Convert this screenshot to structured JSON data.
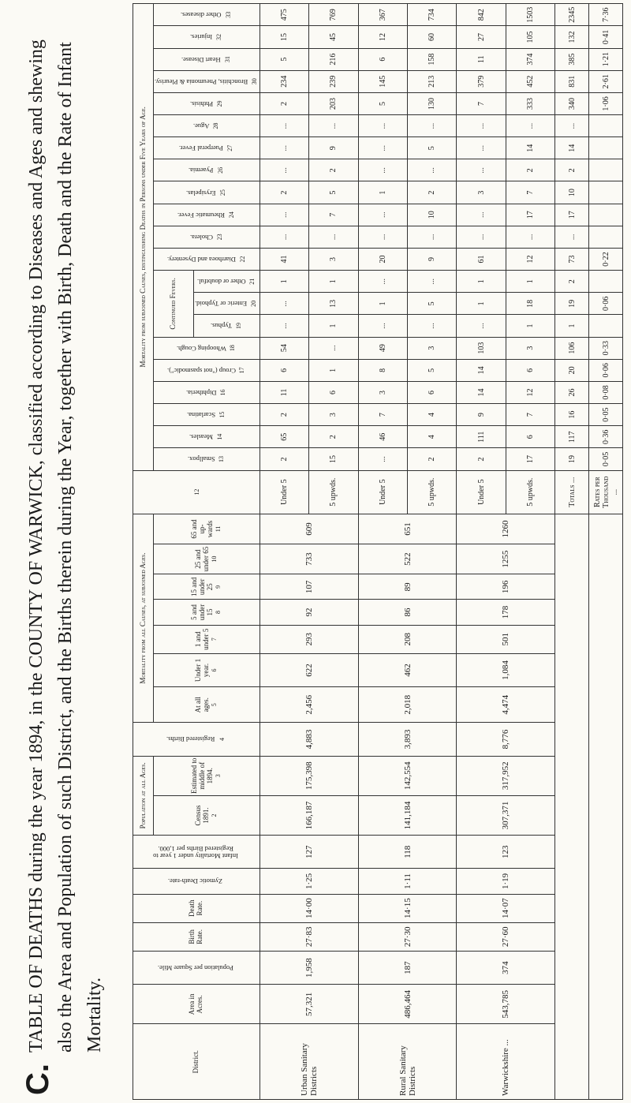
{
  "title": {
    "prefix": "C.",
    "text": "TABLE OF DEATHS during the year 1894, in the COUNTY OF WARWICK, classified according to Diseases and Ages and shewing also the Area and Population of such District, and the Births therein during the Year, together with Birth, Death and the Rate of Infant Mortality."
  },
  "header": {
    "district": {
      "label": "District."
    },
    "area": {
      "label": "Area in Acres."
    },
    "density": {
      "label": "Population per Square Mile."
    },
    "birth_rate": {
      "label": "Birth Rate."
    },
    "death_rate": {
      "label": "Death Rate."
    },
    "zymotic_rate": {
      "label": "Zymotic Death-rate."
    },
    "infant_mortality": {
      "label": "Infant Mortality under 1 year to Registered Births per 1,000."
    },
    "population": {
      "title": "Population at all Ages.",
      "columns": [
        {
          "label": "Census 1891.",
          "number": "2"
        },
        {
          "label": "Estimated to middle of 1894.",
          "number": "3"
        }
      ]
    },
    "births": {
      "label": "Registered Births.",
      "number": "4"
    },
    "ages": {
      "title": "Mortality from all Causes, at subjoined Ages.",
      "columns": [
        {
          "label": "At all ages.",
          "number": "5"
        },
        {
          "label": "Under 1 year.",
          "number": "6"
        },
        {
          "label": "1 and under 5",
          "number": "7"
        },
        {
          "label": "5 and under 15",
          "number": "8"
        },
        {
          "label": "15 and under 25",
          "number": "9"
        },
        {
          "label": "25 and under 65",
          "number": "10"
        },
        {
          "label": "65 and up-wards",
          "number": "11"
        }
      ]
    },
    "age_group": {
      "number": "12"
    },
    "causes": {
      "title": "Mortality from subjoined Causes, distinguishing Deaths in Persons under Five Years of Age.",
      "columns": [
        {
          "label": "Smallpox.",
          "number": "13"
        },
        {
          "label": "Measles.",
          "number": "14"
        },
        {
          "label": "Scarlatina.",
          "number": "15"
        },
        {
          "label": "Diphtheria.",
          "number": "16"
        },
        {
          "label": "Croup (\"not spasmodic\").",
          "number": "17"
        },
        {
          "label": "Whooping Cough.",
          "number": "18"
        },
        {
          "title": "Continued Fevers.",
          "columns": [
            {
              "label": "Typhus.",
              "number": "19"
            },
            {
              "label": "Enteric or Typhoid.",
              "number": "20"
            },
            {
              "label": "Other or doubtful.",
              "number": "21"
            }
          ]
        },
        {
          "label": "Diarrhoea and Dysentery.",
          "number": "22"
        },
        {
          "label": "Cholera.",
          "number": "23"
        },
        {
          "label": "Rheumatic Fever.",
          "number": "24"
        },
        {
          "label": "Erysipelas.",
          "number": "25"
        },
        {
          "label": "Pyaemia.",
          "number": "26"
        },
        {
          "label": "Puerperal Fever.",
          "number": "27"
        },
        {
          "label": "Ague.",
          "number": "28"
        },
        {
          "label": "Phthisis.",
          "number": "29"
        },
        {
          "label": "Bronchitis, Pneumonia & Pleurisy.",
          "number": "30"
        },
        {
          "label": "Heart Disease.",
          "number": "31"
        },
        {
          "label": "Injuries.",
          "number": "32"
        },
        {
          "label": "Other diseases.",
          "number": "33"
        }
      ]
    }
  },
  "districts": [
    {
      "name": "Urban Sanitary Districts",
      "values": [
        "57,321",
        "1,958",
        "27·83",
        "14·00",
        "1·25",
        "127",
        "166,187",
        "175,398",
        "4,883",
        "2,456",
        "622",
        "293",
        "92",
        "107",
        "733",
        "609"
      ],
      "ages": [
        "Under 5",
        "5 upwds."
      ],
      "causes": [
        [
          "2",
          "65",
          "2",
          "11",
          "6",
          "54",
          "...",
          "...",
          "1",
          "41",
          "...",
          "...",
          "2",
          "...",
          "...",
          "...",
          "2",
          "234",
          "5",
          "15",
          "475"
        ],
        [
          "15",
          "2",
          "3",
          "6",
          "1",
          "...",
          "1",
          "13",
          "1",
          "3",
          "...",
          "7",
          "5",
          "2",
          "9",
          "...",
          "203",
          "239",
          "216",
          "45",
          "769"
        ]
      ]
    },
    {
      "name": "Rural Sanitary Districts",
      "values": [
        "486,464",
        "187",
        "27·30",
        "14·15",
        "1·11",
        "118",
        "141,184",
        "142,554",
        "3,893",
        "2,018",
        "462",
        "208",
        "86",
        "89",
        "522",
        "651"
      ],
      "ages": [
        "Under 5",
        "5 upwds."
      ],
      "causes": [
        [
          "...",
          "46",
          "7",
          "3",
          "8",
          "49",
          "...",
          "1",
          "...",
          "20",
          "...",
          "...",
          "1",
          "...",
          "...",
          "...",
          "5",
          "145",
          "6",
          "12",
          "367"
        ],
        [
          "2",
          "4",
          "4",
          "6",
          "5",
          "3",
          "...",
          "5",
          "...",
          "9",
          "...",
          "10",
          "2",
          "...",
          "5",
          "...",
          "130",
          "213",
          "158",
          "60",
          "734"
        ]
      ]
    },
    {
      "name": "Warwickshire ...",
      "values": [
        "543,785",
        "374",
        "27·60",
        "14·07",
        "1·19",
        "123",
        "307,371",
        "317,952",
        "8,776",
        "4,474",
        "1,084",
        "501",
        "178",
        "196",
        "1255",
        "1260"
      ],
      "ages": [
        "Under 5",
        "5 upwds."
      ],
      "causes": [
        [
          "2",
          "111",
          "9",
          "14",
          "14",
          "103",
          "...",
          "1",
          "1",
          "61",
          "...",
          "...",
          "3",
          "...",
          "...",
          "...",
          "7",
          "379",
          "11",
          "27",
          "842"
        ],
        [
          "17",
          "6",
          "7",
          "12",
          "6",
          "3",
          "1",
          "18",
          "1",
          "12",
          "...",
          "17",
          "7",
          "2",
          "14",
          "...",
          "333",
          "452",
          "374",
          "105",
          "1503"
        ]
      ]
    }
  ],
  "totals": {
    "label": "Totals ...",
    "values": [
      "19",
      "117",
      "16",
      "26",
      "20",
      "106",
      "1",
      "19",
      "2",
      "73",
      "...",
      "17",
      "10",
      "2",
      "14",
      "...",
      "340",
      "831",
      "385",
      "132",
      "2345"
    ]
  },
  "rates": {
    "label": "Rates per Thousand ...",
    "values": [
      "0·05",
      "0·36",
      "0·05",
      "0·08",
      "0·06",
      "0·33",
      null,
      "0·06",
      null,
      "0·22",
      null,
      null,
      null,
      null,
      null,
      null,
      "1·06",
      "2·61",
      "1·21",
      "0·41",
      "7·36"
    ]
  }
}
